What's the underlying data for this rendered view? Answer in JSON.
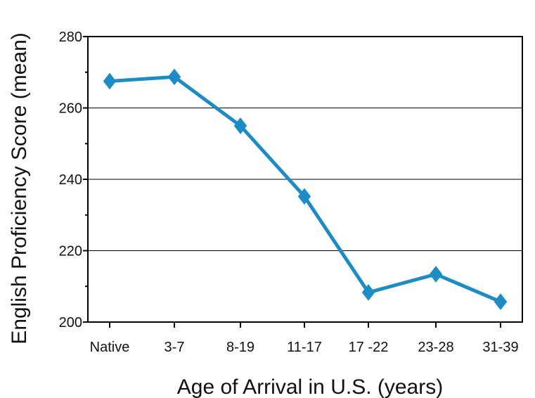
{
  "chart_data": {
    "type": "line",
    "title": "",
    "xlabel": "Age of Arrival in U.S. (years)",
    "ylabel": "English Proficiency Score (mean)",
    "categories": [
      "Native",
      "3-7",
      "8-19",
      "11-17",
      "17 -22",
      "23-28",
      "31-39"
    ],
    "series": [
      {
        "values": [
          267.5,
          268.7,
          255.0,
          235.2,
          208.3,
          213.4,
          205.7
        ],
        "color": "#1a8cc6",
        "marker": "diamond"
      }
    ],
    "ylim": [
      200,
      280
    ],
    "yticks": [
      "200",
      "220",
      "240",
      "260",
      "280"
    ],
    "grid": "horizontal-major",
    "legend": "none"
  }
}
